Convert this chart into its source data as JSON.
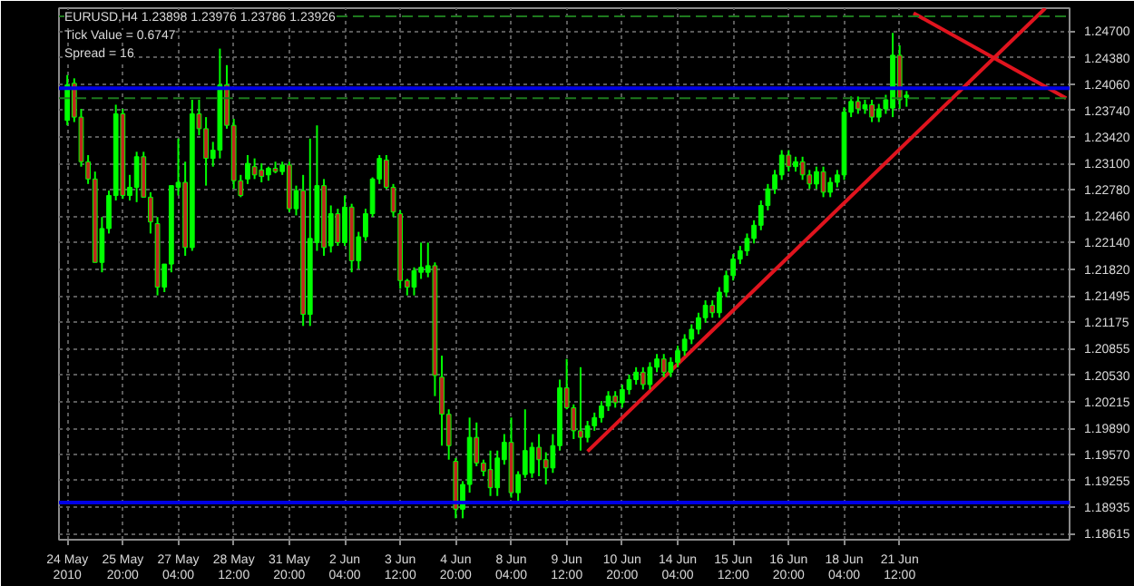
{
  "chart_data": {
    "type": "candlestick",
    "title": "EURUSD,H4 1.23898 1.23976 1.23786 1.23926",
    "annotations": [
      "Tick Value = 0.6747",
      "Spread = 16"
    ],
    "categories": [
      "24 May 2010",
      null,
      null,
      null,
      null,
      null,
      null,
      null,
      "25 May 20:00",
      null,
      null,
      null,
      null,
      null,
      null,
      null,
      "27 May 04:00",
      null,
      null,
      null,
      null,
      null,
      null,
      null,
      "28 May 12:00",
      null,
      null,
      null,
      null,
      null,
      null,
      null,
      "31 May 20:00",
      null,
      null,
      null,
      null,
      null,
      null,
      null,
      "2 Jun 04:00",
      null,
      null,
      null,
      null,
      null,
      null,
      null,
      "3 Jun 12:00",
      null,
      null,
      null,
      null,
      null,
      null,
      null,
      "4 Jun 20:00",
      null,
      null,
      null,
      null,
      null,
      null,
      null,
      "8 Jun 04:00",
      null,
      null,
      null,
      null,
      null,
      null,
      null,
      "9 Jun 12:00",
      null,
      null,
      null,
      null,
      null,
      null,
      null,
      "10 Jun 20:00",
      null,
      null,
      null,
      null,
      null,
      null,
      null,
      "14 Jun 04:00",
      null,
      null,
      null,
      null,
      null,
      null,
      null,
      "15 Jun 12:00",
      null,
      null,
      null,
      null,
      null,
      null,
      null,
      "16 Jun 20:00",
      null,
      null,
      null,
      null,
      null,
      null,
      null,
      "18 Jun 04:00",
      null,
      null,
      null,
      null,
      null,
      null,
      null,
      "21 Jun 12:00",
      null,
      null,
      null,
      null,
      null,
      null,
      null,
      null,
      null,
      null,
      null,
      null,
      null,
      null,
      null,
      null,
      null,
      null,
      null,
      null,
      null,
      null,
      null,
      null
    ],
    "ohlc": [
      [
        1.2362,
        1.2417,
        1.2356,
        1.2405
      ],
      [
        1.2407,
        1.2413,
        1.236,
        1.2366
      ],
      [
        1.2366,
        1.2376,
        1.2306,
        1.2312
      ],
      [
        1.2312,
        1.232,
        1.2285,
        1.2291
      ],
      [
        1.2291,
        1.23,
        1.219,
        1.219
      ],
      [
        1.219,
        1.2245,
        1.2178,
        1.2231
      ],
      [
        1.2231,
        1.2277,
        1.2225,
        1.2271
      ],
      [
        1.2271,
        1.2381,
        1.2265,
        1.237
      ],
      [
        1.237,
        1.2376,
        1.2267,
        1.2271
      ],
      [
        1.2271,
        1.2296,
        1.2265,
        1.2281
      ],
      [
        1.2281,
        1.2324,
        1.2263,
        1.2318
      ],
      [
        1.2318,
        1.2324,
        1.2269,
        1.2269
      ],
      [
        1.2269,
        1.2275,
        1.2225,
        1.2239
      ],
      [
        1.2237,
        1.2245,
        1.215,
        1.216
      ],
      [
        1.216,
        1.2188,
        1.2154,
        1.2188
      ],
      [
        1.2188,
        1.2283,
        1.2178,
        1.2283
      ],
      [
        1.2281,
        1.234,
        1.2271,
        1.2287
      ],
      [
        1.2287,
        1.2312,
        1.2198,
        1.2208
      ],
      [
        1.2208,
        1.2387,
        1.2204,
        1.237
      ],
      [
        1.237,
        1.2387,
        1.2344,
        1.2352
      ],
      [
        1.2352,
        1.2366,
        1.2283,
        1.2316
      ],
      [
        1.2316,
        1.2336,
        1.2306,
        1.2326
      ],
      [
        1.2326,
        1.2449,
        1.2316,
        1.2405
      ],
      [
        1.2405,
        1.2429,
        1.2352,
        1.2356
      ],
      [
        1.2356,
        1.2364,
        1.2279,
        1.2289
      ],
      [
        1.2289,
        1.2296,
        1.2269,
        1.2271
      ],
      [
        1.2291,
        1.232,
        1.2285,
        1.231
      ],
      [
        1.2306,
        1.2316,
        1.2291,
        1.2296
      ],
      [
        1.2302,
        1.231,
        1.2287,
        1.2294
      ],
      [
        1.2296,
        1.2306,
        1.2289,
        1.2304
      ],
      [
        1.2304,
        1.2312,
        1.2298,
        1.23
      ],
      [
        1.23,
        1.2312,
        1.2296,
        1.2308
      ],
      [
        1.2308,
        1.2312,
        1.2251,
        1.2255
      ],
      [
        1.2255,
        1.2283,
        1.2247,
        1.2277
      ],
      [
        1.2277,
        1.2296,
        1.2113,
        1.2127
      ],
      [
        1.2127,
        1.234,
        1.2113,
        1.2219
      ],
      [
        1.2214,
        1.2356,
        1.2204,
        1.2283
      ],
      [
        1.2283,
        1.2291,
        1.2198,
        1.2208
      ],
      [
        1.221,
        1.2259,
        1.2202,
        1.2249
      ],
      [
        1.2249,
        1.2255,
        1.221,
        1.2214
      ],
      [
        1.2214,
        1.2271,
        1.221,
        1.2257
      ],
      [
        1.2257,
        1.2261,
        1.2178,
        1.2192
      ],
      [
        1.2192,
        1.2227,
        1.2182,
        1.2221
      ],
      [
        1.2221,
        1.2255,
        1.2216,
        1.2249
      ],
      [
        1.2249,
        1.2293,
        1.2245,
        1.2291
      ],
      [
        1.2291,
        1.232,
        1.2285,
        1.2316
      ],
      [
        1.2314,
        1.232,
        1.2279,
        1.2281
      ],
      [
        1.2281,
        1.2285,
        1.2245,
        1.2251
      ],
      [
        1.2249,
        1.2253,
        1.2158,
        1.2168
      ],
      [
        1.2168,
        1.217,
        1.215,
        1.216
      ],
      [
        1.216,
        1.2184,
        1.215,
        1.218
      ],
      [
        1.2178,
        1.2214,
        1.217,
        1.2184
      ],
      [
        1.2178,
        1.2214,
        1.2172,
        1.2186
      ],
      [
        1.2186,
        1.219,
        1.2028,
        1.2053
      ],
      [
        1.2051,
        1.2077,
        1.1968,
        1.2006
      ],
      [
        1.2006,
        1.2012,
        1.1951,
        1.1968
      ],
      [
        1.1949,
        1.1953,
        1.188,
        1.1891
      ],
      [
        1.1891,
        1.1925,
        1.188,
        1.1921
      ],
      [
        1.1921,
        1.2002,
        1.1911,
        1.1978
      ],
      [
        1.1978,
        1.1996,
        1.1943,
        1.1947
      ],
      [
        1.1947,
        1.1951,
        1.1931,
        1.1937
      ],
      [
        1.1939,
        1.1962,
        1.1907,
        1.1917
      ],
      [
        1.1917,
        1.1962,
        1.1907,
        1.1953
      ],
      [
        1.1951,
        1.1982,
        1.1945,
        1.1972
      ],
      [
        1.1972,
        1.2002,
        1.1905,
        1.1911
      ],
      [
        1.1911,
        1.1937,
        1.1901,
        1.1933
      ],
      [
        1.1933,
        1.2012,
        1.1929,
        1.1962
      ],
      [
        1.1935,
        1.1972,
        1.1929,
        1.1966
      ],
      [
        1.1966,
        1.1982,
        1.1931,
        1.1951
      ],
      [
        1.1951,
        1.196,
        1.1921,
        1.1941
      ],
      [
        1.1941,
        1.1982,
        1.1935,
        1.1968
      ],
      [
        1.1968,
        1.2048,
        1.1962,
        1.2038
      ],
      [
        1.2038,
        1.2073,
        1.2012,
        1.2014
      ],
      [
        1.2014,
        1.2018,
        1.1976,
        1.1986
      ],
      [
        1.1986,
        1.2063,
        1.1962,
        1.1978
      ],
      [
        1.1978,
        1.1998,
        1.1972,
        1.1992
      ],
      [
        1.1992,
        1.2008,
        1.1986,
        1.2002
      ],
      [
        1.2002,
        1.2022,
        1.1996,
        1.2016
      ],
      [
        1.2016,
        1.2034,
        1.201,
        1.2028
      ],
      [
        1.2028,
        1.2034,
        1.2014,
        1.202
      ],
      [
        1.202,
        1.2042,
        1.2014,
        1.2036
      ],
      [
        1.2036,
        1.2054,
        1.203,
        1.2048
      ],
      [
        1.2048,
        1.2063,
        1.2042,
        1.2057
      ],
      [
        1.2057,
        1.2063,
        1.2036,
        1.2042
      ],
      [
        1.2042,
        1.2069,
        1.2036,
        1.2063
      ],
      [
        1.2063,
        1.2079,
        1.2057,
        1.2073
      ],
      [
        1.2073,
        1.2079,
        1.2051,
        1.2057
      ],
      [
        1.2057,
        1.2075,
        1.2051,
        1.2069
      ],
      [
        1.2069,
        1.2089,
        1.2063,
        1.2083
      ],
      [
        1.2083,
        1.2103,
        1.2077,
        1.2097
      ],
      [
        1.2097,
        1.2115,
        1.2091,
        1.2109
      ],
      [
        1.2109,
        1.2129,
        1.2103,
        1.2123
      ],
      [
        1.2123,
        1.2144,
        1.2117,
        1.2138
      ],
      [
        1.2138,
        1.2144,
        1.2123,
        1.2129
      ],
      [
        1.2129,
        1.216,
        1.2123,
        1.2154
      ],
      [
        1.2154,
        1.218,
        1.2148,
        1.2174
      ],
      [
        1.2174,
        1.22,
        1.2168,
        1.2194
      ],
      [
        1.2194,
        1.221,
        1.2188,
        1.2204
      ],
      [
        1.2204,
        1.2225,
        1.2198,
        1.2219
      ],
      [
        1.2219,
        1.2241,
        1.2213,
        1.2235
      ],
      [
        1.2235,
        1.2265,
        1.2229,
        1.2259
      ],
      [
        1.2259,
        1.2285,
        1.2253,
        1.2279
      ],
      [
        1.2279,
        1.2302,
        1.2273,
        1.2296
      ],
      [
        1.2296,
        1.2326,
        1.229,
        1.232
      ],
      [
        1.232,
        1.2326,
        1.23,
        1.2306
      ],
      [
        1.2306,
        1.2318,
        1.23,
        1.2312
      ],
      [
        1.2312,
        1.2318,
        1.229,
        1.2296
      ],
      [
        1.2296,
        1.2302,
        1.2279,
        1.2285
      ],
      [
        1.2285,
        1.2306,
        1.2279,
        1.23
      ],
      [
        1.23,
        1.2306,
        1.2269,
        1.2275
      ],
      [
        1.2275,
        1.2293,
        1.2269,
        1.2287
      ],
      [
        1.2287,
        1.2302,
        1.2281,
        1.2296
      ],
      [
        1.2296,
        1.2378,
        1.229,
        1.2372
      ],
      [
        1.2372,
        1.2391,
        1.2366,
        1.2385
      ],
      [
        1.2385,
        1.2391,
        1.237,
        1.2376
      ],
      [
        1.2376,
        1.2387,
        1.237,
        1.2381
      ],
      [
        1.2381,
        1.2387,
        1.236,
        1.2366
      ],
      [
        1.2366,
        1.2382,
        1.236,
        1.2376
      ],
      [
        1.2376,
        1.2393,
        1.237,
        1.2387
      ],
      [
        1.2377,
        1.2468,
        1.2366,
        1.2441
      ],
      [
        1.2441,
        1.2453,
        1.2376,
        1.2387
      ],
      [
        1.23898,
        1.23976,
        1.23786,
        1.23926
      ],
      null,
      null,
      null,
      null,
      null,
      null,
      null,
      null,
      null,
      null,
      null,
      null,
      null,
      null,
      null,
      null,
      null,
      null,
      null,
      null,
      null,
      null,
      null
    ],
    "colors": [
      "#00ff00",
      "#c0281e",
      "#c0281e",
      "#c0281e",
      "#c0281e",
      "#00ff00",
      "#00ff00",
      "#00ff00",
      "#c0281e",
      "#00ff00",
      "#00ff00",
      "#c0281e",
      "#c0281e",
      "#c0281e",
      "#00ff00",
      "#00ff00",
      "#00ff00",
      "#c0281e",
      "#00ff00",
      "#c0281e",
      "#c0281e",
      "#00ff00",
      "#00ff00",
      "#c0281e",
      "#c0281e",
      "#c0281e",
      "#00ff00",
      "#c0281e",
      "#c0281e",
      "#00ff00",
      "#c0281e",
      "#00ff00",
      "#c0281e",
      "#00ff00",
      "#c0281e",
      "#00ff00",
      "#00ff00",
      "#c0281e",
      "#00ff00",
      "#c0281e",
      "#00ff00",
      "#c0281e",
      "#00ff00",
      "#00ff00",
      "#00ff00",
      "#00ff00",
      "#c0281e",
      "#c0281e",
      "#c0281e",
      "#c0281e",
      "#00ff00",
      "#00ff00",
      "#00ff00",
      "#c0281e",
      "#c0281e",
      "#c0281e",
      "#c0281e",
      "#00ff00",
      "#00ff00",
      "#c0281e",
      "#c0281e",
      "#c0281e",
      "#00ff00",
      "#00ff00",
      "#c0281e",
      "#00ff00",
      "#00ff00",
      "#00ff00",
      "#c0281e",
      "#c0281e",
      "#00ff00",
      "#00ff00",
      "#c0281e",
      "#c0281e",
      "#c0281e",
      "#00ff00",
      "#00ff00",
      "#00ff00",
      "#00ff00",
      "#c0281e",
      "#00ff00",
      "#00ff00",
      "#00ff00",
      "#c0281e",
      "#00ff00",
      "#00ff00",
      "#c0281e",
      "#00ff00",
      "#00ff00",
      "#00ff00",
      "#00ff00",
      "#00ff00",
      "#00ff00",
      "#c0281e",
      "#00ff00",
      "#00ff00",
      "#00ff00",
      "#00ff00",
      "#00ff00",
      "#00ff00",
      "#00ff00",
      "#00ff00",
      "#00ff00",
      "#00ff00",
      "#c0281e",
      "#00ff00",
      "#c0281e",
      "#c0281e",
      "#00ff00",
      "#c0281e",
      "#00ff00",
      "#00ff00",
      "#00ff00",
      "#00ff00",
      "#c0281e",
      "#00ff00",
      "#c0281e",
      "#00ff00",
      "#00ff00",
      "#00ff00",
      "#c0281e",
      "#00ff00",
      null,
      null,
      null,
      null,
      null,
      null,
      null,
      null,
      null,
      null,
      null,
      null,
      null,
      null,
      null,
      null,
      null,
      null,
      null,
      null,
      null,
      null,
      null
    ],
    "series": [
      {
        "type": "line",
        "color": "#e0141e",
        "values": [
          null,
          null,
          null,
          null,
          null,
          null,
          null,
          null,
          null,
          null,
          null,
          null,
          null,
          null,
          null,
          null,
          null,
          null,
          null,
          null,
          null,
          null,
          null,
          null,
          null,
          null,
          null,
          null,
          null,
          null,
          null,
          null,
          null,
          null,
          null,
          null,
          null,
          null,
          null,
          null,
          null,
          null,
          null,
          null,
          null,
          null,
          null,
          null,
          null,
          null,
          null,
          null,
          null,
          null,
          null,
          null,
          null,
          null,
          null,
          null,
          null,
          null,
          null,
          null,
          null,
          null,
          null,
          null,
          null,
          null,
          null,
          null,
          null,
          null,
          null,
          1.1961,
          null,
          null,
          null,
          null,
          null,
          null,
          null,
          null,
          null,
          null,
          null,
          null,
          null,
          null,
          null,
          null,
          null,
          null,
          null,
          null,
          null,
          null,
          null,
          null,
          null,
          null,
          null,
          null,
          null,
          null,
          null,
          null,
          null,
          null,
          null,
          null,
          null,
          null,
          null,
          null,
          null,
          null,
          null,
          null,
          null,
          null,
          null,
          null,
          null,
          null,
          null,
          null,
          null,
          null,
          null,
          null,
          null,
          null,
          null,
          null,
          null,
          null,
          null,
          null,
          null,
          1.2498,
          null,
          null,
          null
        ]
      },
      {
        "type": "line",
        "color": "#e0141e",
        "values": [
          null,
          null,
          null,
          null,
          null,
          null,
          null,
          null,
          null,
          null,
          null,
          null,
          null,
          null,
          null,
          null,
          null,
          null,
          null,
          null,
          null,
          null,
          null,
          null,
          null,
          null,
          null,
          null,
          null,
          null,
          null,
          null,
          null,
          null,
          null,
          null,
          null,
          null,
          null,
          null,
          null,
          null,
          null,
          null,
          null,
          null,
          null,
          null,
          null,
          null,
          null,
          null,
          null,
          null,
          null,
          null,
          null,
          null,
          null,
          null,
          null,
          null,
          null,
          null,
          null,
          null,
          null,
          null,
          null,
          null,
          null,
          null,
          null,
          null,
          null,
          null,
          null,
          null,
          null,
          null,
          null,
          null,
          null,
          null,
          null,
          null,
          null,
          null,
          null,
          null,
          null,
          null,
          null,
          null,
          null,
          null,
          null,
          null,
          null,
          null,
          null,
          null,
          null,
          null,
          null,
          null,
          null,
          null,
          null,
          null,
          null,
          null,
          null,
          null,
          null,
          null,
          null,
          null,
          null,
          null,
          null,
          null,
          1.2492,
          null,
          null,
          null,
          null,
          null,
          null,
          null,
          null,
          null,
          null,
          null,
          null,
          null,
          null,
          null,
          null,
          null,
          null,
          null,
          null,
          null,
          1.2389
        ]
      }
    ],
    "ref_lines": [
      {
        "axis": "y",
        "value": 1.2401,
        "color": "#0000e6",
        "line_style": "solid"
      },
      {
        "axis": "y",
        "value": 1.1899,
        "color": "#0000e6",
        "line_style": "solid"
      },
      {
        "axis": "y",
        "value": 1.2389,
        "color": "#1e7a1e",
        "line_style": "dashed"
      },
      {
        "axis": "y",
        "value": 1.2488,
        "color": "#1e7a1e",
        "line_style": "dashed"
      }
    ],
    "ylim": [
      1.1854,
      1.2498
    ],
    "yticks": [
      {
        "value": 1.18615,
        "label": "1.18615"
      },
      {
        "value": 1.18935,
        "label": "1.18935"
      },
      {
        "value": 1.19255,
        "label": "1.19255"
      },
      {
        "value": 1.1957,
        "label": "1.19570"
      },
      {
        "value": 1.1989,
        "label": "1.19890"
      },
      {
        "value": 1.20215,
        "label": "1.20215"
      },
      {
        "value": 1.2053,
        "label": "1.20530"
      },
      {
        "value": 1.20855,
        "label": "1.20855"
      },
      {
        "value": 1.21175,
        "label": "1.21175"
      },
      {
        "value": 1.21495,
        "label": "1.21495"
      },
      {
        "value": 1.2182,
        "label": "1.21820"
      },
      {
        "value": 1.2214,
        "label": "1.22140"
      },
      {
        "value": 1.2246,
        "label": "1.22460"
      },
      {
        "value": 1.2278,
        "label": "1.22780"
      },
      {
        "value": 1.231,
        "label": "1.23100"
      },
      {
        "value": 1.2342,
        "label": "1.23420"
      },
      {
        "value": 1.2374,
        "label": "1.23740"
      },
      {
        "value": 1.2406,
        "label": "1.24060"
      },
      {
        "value": 1.2438,
        "label": "1.24380"
      },
      {
        "value": 1.247,
        "label": "1.24700"
      }
    ],
    "grid": true
  }
}
